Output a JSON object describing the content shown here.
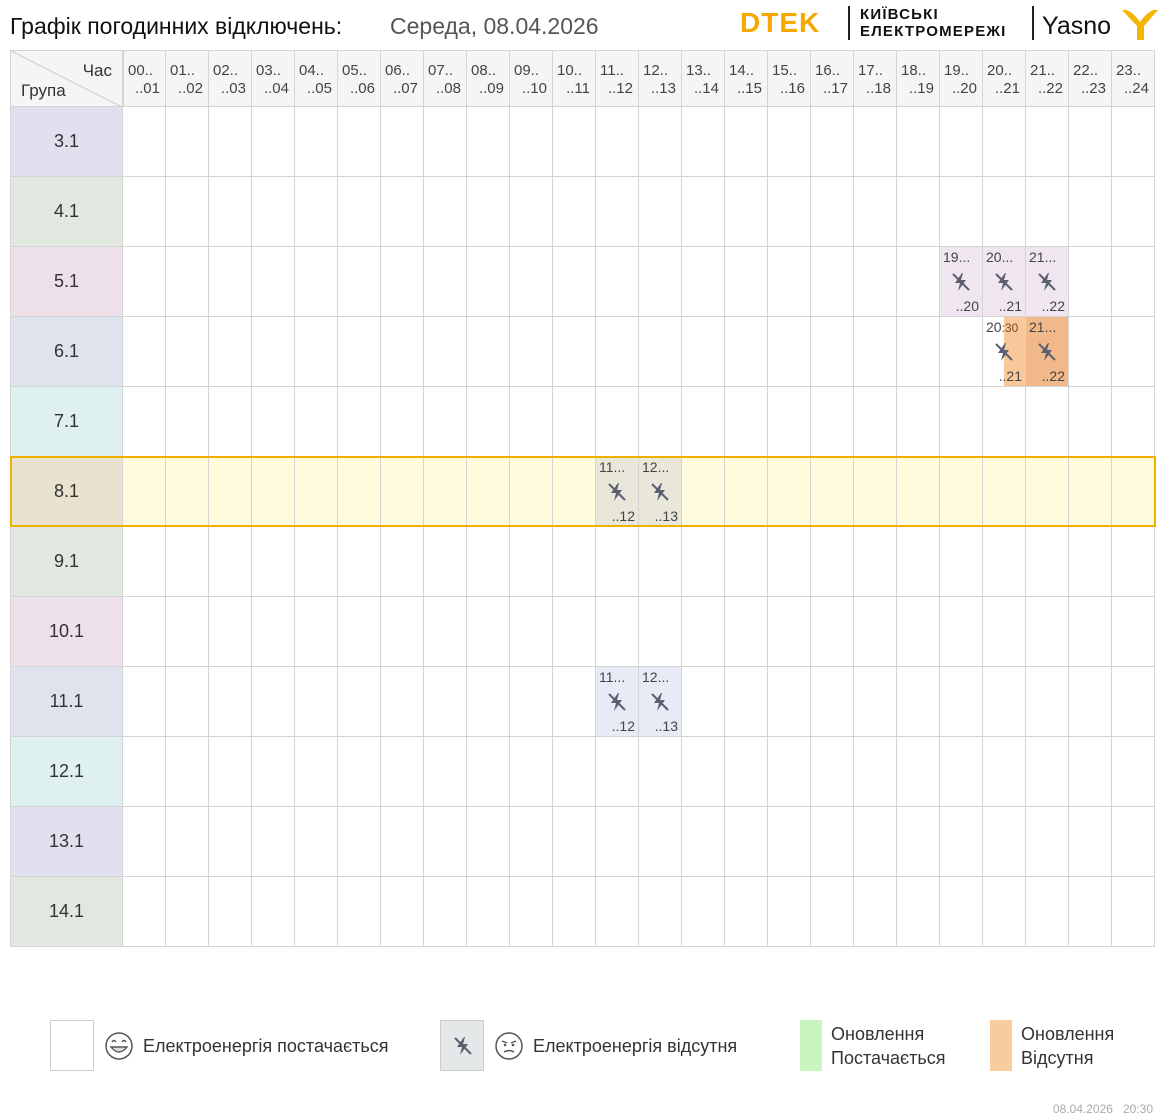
{
  "header": {
    "title": "Графік погодинних відключень:",
    "date": "Середа, 08.04.2026",
    "brand_dtek": "DTEK",
    "brand_kyiv_line1": "КИЇВСЬКІ",
    "brand_kyiv_line2": "ЕЛЕКТРОМЕРЕЖІ",
    "brand_yasno": "Yasno"
  },
  "table": {
    "corner_hour": "Час",
    "corner_group": "Група",
    "hours": [
      {
        "from": "00..",
        "to": "..01"
      },
      {
        "from": "01..",
        "to": "..02"
      },
      {
        "from": "02..",
        "to": "..03"
      },
      {
        "from": "03..",
        "to": "..04"
      },
      {
        "from": "04..",
        "to": "..05"
      },
      {
        "from": "05..",
        "to": "..06"
      },
      {
        "from": "06..",
        "to": "..07"
      },
      {
        "from": "07..",
        "to": "..08"
      },
      {
        "from": "08..",
        "to": "..09"
      },
      {
        "from": "09..",
        "to": "..10"
      },
      {
        "from": "10..",
        "to": "..11"
      },
      {
        "from": "11..",
        "to": "..12"
      },
      {
        "from": "12..",
        "to": "..13"
      },
      {
        "from": "13..",
        "to": "..14"
      },
      {
        "from": "14..",
        "to": "..15"
      },
      {
        "from": "15..",
        "to": "..16"
      },
      {
        "from": "16..",
        "to": "..17"
      },
      {
        "from": "17..",
        "to": "..18"
      },
      {
        "from": "18..",
        "to": "..19"
      },
      {
        "from": "19..",
        "to": "..20"
      },
      {
        "from": "20..",
        "to": "..21"
      },
      {
        "from": "21..",
        "to": "..22"
      },
      {
        "from": "22..",
        "to": "..23"
      },
      {
        "from": "23..",
        "to": "..24"
      }
    ],
    "highlighted_group": "8.1",
    "groups": [
      {
        "name": "3.1",
        "color": "#e0e0ef",
        "outages": []
      },
      {
        "name": "4.1",
        "color": "#e0e8e0",
        "outages": []
      },
      {
        "name": "5.1",
        "color": "#eee0e8",
        "outages": [
          {
            "hour": 19,
            "from": "19...",
            "to": "..20",
            "color": "#efe6f0",
            "kind": "off"
          },
          {
            "hour": 20,
            "from": "20...",
            "to": "..21",
            "color": "#efe6f0",
            "kind": "off"
          },
          {
            "hour": 21,
            "from": "21...",
            "to": "..22",
            "color": "#efe6f0",
            "kind": "off"
          }
        ]
      },
      {
        "name": "6.1",
        "color": "#dfe3ee",
        "outages": [
          {
            "hour": 20,
            "from": "20",
            "from_extra": ":30",
            "to": "..21",
            "color": "#f7c99a",
            "kind": "partial-update",
            "start_fraction": 0.5
          },
          {
            "hour": 21,
            "from": "21...",
            "to": "..22",
            "color": "#f1b88a",
            "kind": "update-off"
          }
        ]
      },
      {
        "name": "7.1",
        "color": "#dff0f0",
        "outages": []
      },
      {
        "name": "8.1",
        "color": "#e8e2cf",
        "row_color": "#fffbdc",
        "outages": [
          {
            "hour": 11,
            "from": "11...",
            "to": "..12",
            "color": "#e9e7d9",
            "kind": "off"
          },
          {
            "hour": 12,
            "from": "12...",
            "to": "..13",
            "color": "#e9e7d9",
            "kind": "off"
          }
        ]
      },
      {
        "name": "9.1",
        "color": "#e0e8e0",
        "outages": []
      },
      {
        "name": "10.1",
        "color": "#eee0e8",
        "outages": []
      },
      {
        "name": "11.1",
        "color": "#dfe3ee",
        "outages": [
          {
            "hour": 11,
            "from": "11...",
            "to": "..12",
            "color": "#e6ebf6",
            "kind": "off"
          },
          {
            "hour": 12,
            "from": "12...",
            "to": "..13",
            "color": "#e6ebf6",
            "kind": "off"
          }
        ]
      },
      {
        "name": "12.1",
        "color": "#dff0f0",
        "outages": []
      },
      {
        "name": "13.1",
        "color": "#e0e0ef",
        "outages": []
      },
      {
        "name": "14.1",
        "color": "#e0e8e0",
        "outages": []
      }
    ]
  },
  "legend": {
    "power_on": "Електроенергія постачається",
    "power_off": "Електроенергія відсутня",
    "update_on_1": "Оновлення",
    "update_on_2": "Постачається",
    "update_off_1": "Оновлення",
    "update_off_2": "Відсутня",
    "update_on_color": "#c8f5c0",
    "update_off_color": "#f8cc9e",
    "off_color": "#e4e8e8"
  },
  "footer": {
    "date": "08.04.2026",
    "time": "20:30"
  },
  "icons": {
    "outage": "no-power-icon",
    "smile": "smiling-face-icon",
    "sad": "unhappy-face-icon",
    "brand": "yasno-y-icon"
  }
}
